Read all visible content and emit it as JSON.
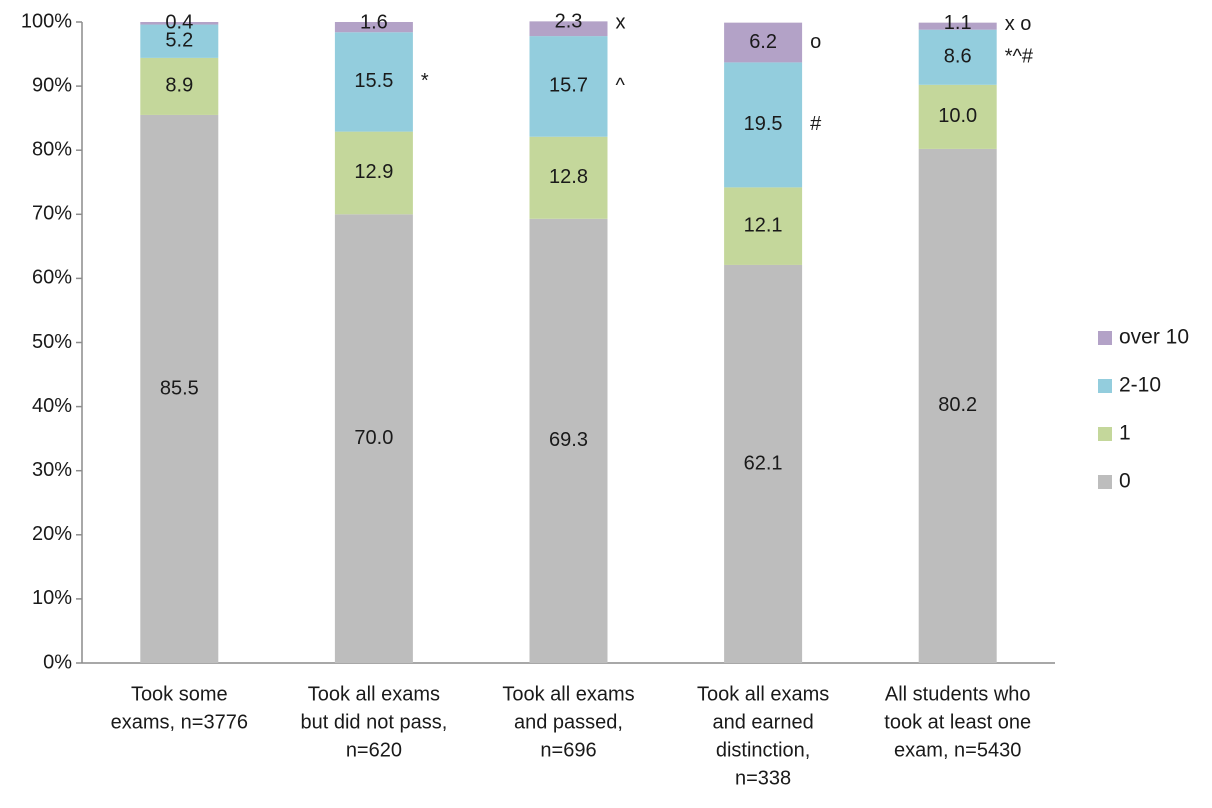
{
  "chart_data": {
    "type": "bar",
    "stacked": true,
    "title": "",
    "xlabel": "",
    "ylabel": "",
    "ylim": [
      0,
      100
    ],
    "y_ticks": [
      "0%",
      "10%",
      "20%",
      "30%",
      "40%",
      "50%",
      "60%",
      "70%",
      "80%",
      "90%",
      "100%"
    ],
    "grid": false,
    "legend_position": "right",
    "categories": [
      [
        "Took some",
        "exams, n=3776"
      ],
      [
        "Took all exams",
        "but did not pass,",
        "n=620"
      ],
      [
        "Took all exams",
        "and passed,",
        "n=696"
      ],
      [
        "Took all exams",
        "and earned",
        "distinction,",
        "n=338"
      ],
      [
        "All students who",
        "took at least one",
        "exam, n=5430"
      ]
    ],
    "series": [
      {
        "name": "0",
        "color": "#bdbdbd",
        "values": [
          85.5,
          70.0,
          69.3,
          62.1,
          80.2
        ],
        "labels": [
          "85.5",
          "70.0",
          "69.3",
          "62.1",
          "80.2"
        ]
      },
      {
        "name": "1",
        "color": "#c4d79b",
        "values": [
          8.9,
          12.9,
          12.8,
          12.1,
          10.0
        ],
        "labels": [
          "8.9",
          "12.9",
          "12.8",
          "12.1",
          "10.0"
        ]
      },
      {
        "name": "2-10",
        "color": "#93cddd",
        "values": [
          5.2,
          15.5,
          15.7,
          19.5,
          8.6
        ],
        "labels": [
          "5.2",
          "15.5",
          "15.7",
          "19.5",
          "8.6"
        ]
      },
      {
        "name": "over 10",
        "color": "#b3a2c7",
        "values": [
          0.4,
          1.6,
          2.3,
          6.2,
          1.1
        ],
        "labels": [
          "0.4",
          "1.6",
          "2.3",
          "6.2",
          "1.1"
        ]
      }
    ],
    "annotations": [
      {
        "category": 1,
        "series": 2,
        "text": "*"
      },
      {
        "category": 2,
        "series": 2,
        "text": "^"
      },
      {
        "category": 2,
        "series": 3,
        "text": "x"
      },
      {
        "category": 3,
        "series": 2,
        "text": "#"
      },
      {
        "category": 3,
        "series": 3,
        "text": "o"
      },
      {
        "category": 4,
        "series": 2,
        "text": "*^#"
      },
      {
        "category": 4,
        "series": 3,
        "text": "x o"
      }
    ],
    "legend_order": [
      "over 10",
      "2-10",
      "1",
      "0"
    ]
  }
}
